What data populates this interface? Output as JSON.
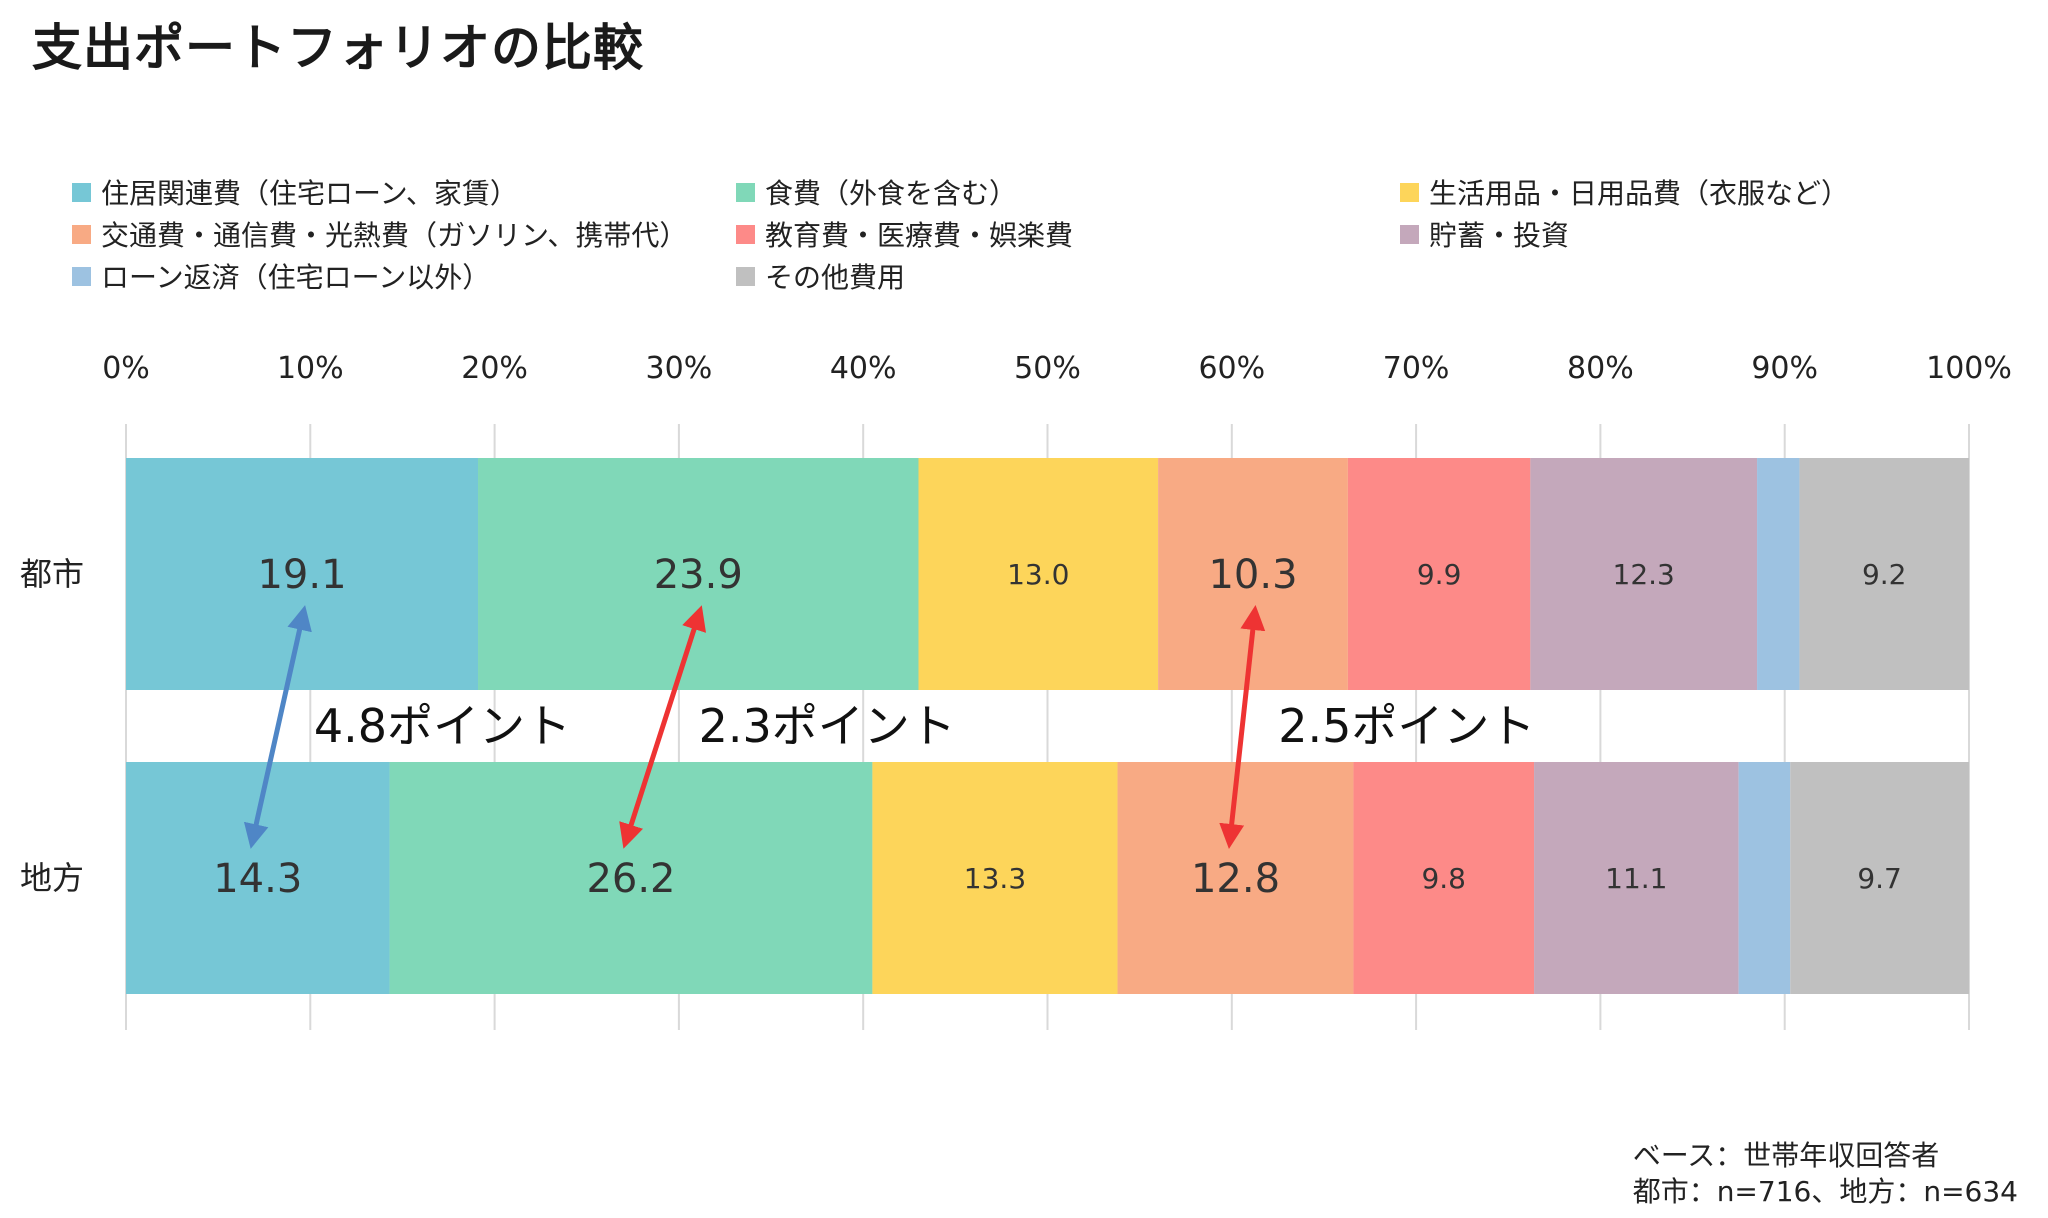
{
  "title": "支出ポートフォリオの比較",
  "chart_data": {
    "type": "bar",
    "orientation": "horizontal",
    "stacked": true,
    "percent_stacked": true,
    "categories": [
      "都市",
      "地方"
    ],
    "series": [
      {
        "name": "住居関連費（住宅ローン、家賃）",
        "color": "#76c7d6",
        "values": [
          19.1,
          14.3
        ],
        "labels": [
          "19.1",
          "14.3"
        ],
        "label_size": "large"
      },
      {
        "name": "食費（外食を含む）",
        "color": "#80d8b8",
        "values": [
          23.9,
          26.2
        ],
        "labels": [
          "23.9",
          "26.2"
        ],
        "label_size": "large"
      },
      {
        "name": "生活用品・日用品費（衣服など）",
        "color": "#fdd55a",
        "values": [
          13.0,
          13.3
        ],
        "labels": [
          "13.0",
          "13.3"
        ],
        "label_size": "small"
      },
      {
        "name": "交通費・通信費・光熱費（ガソリン、携帯代）",
        "color": "#f8aa84",
        "values": [
          10.3,
          12.8
        ],
        "labels": [
          "10.3",
          "12.8"
        ],
        "label_size": "large"
      },
      {
        "name": "教育費・医療費・娯楽費",
        "color": "#fd8a88",
        "values": [
          9.9,
          9.8
        ],
        "labels": [
          "9.9",
          "9.8"
        ],
        "label_size": "small"
      },
      {
        "name": "貯蓄・投資",
        "color": "#c4a8bb",
        "values": [
          12.3,
          11.1
        ],
        "labels": [
          "12.3",
          "11.1"
        ],
        "label_size": "small"
      },
      {
        "name": "ローン返済（住宅ローン以外）",
        "color": "#9dc2e1",
        "values": [
          2.3,
          2.8
        ],
        "labels": [
          "",
          ""
        ],
        "label_size": "small"
      },
      {
        "name": "その他費用",
        "color": "#c0c0c0",
        "values": [
          9.2,
          9.7
        ],
        "labels": [
          "9.2",
          "9.7"
        ],
        "label_size": "small"
      }
    ],
    "x_ticks": [
      "0%",
      "10%",
      "20%",
      "30%",
      "40%",
      "50%",
      "60%",
      "70%",
      "80%",
      "90%",
      "100%"
    ],
    "xlim": [
      0,
      100
    ],
    "grid": true,
    "legend_position": "top",
    "annotations": [
      {
        "text": "4.8ポイント",
        "series_index": 0,
        "arrow_color": "#4f86c6"
      },
      {
        "text": "2.3ポイント",
        "series_index": 1,
        "arrow_color": "#ee3333"
      },
      {
        "text": "2.5ポイント",
        "series_index": 3,
        "arrow_color": "#ee3333"
      }
    ]
  },
  "note": {
    "line1": "ベース：世帯年収回答者",
    "line2": "都市：n=716、地方：n=634"
  }
}
